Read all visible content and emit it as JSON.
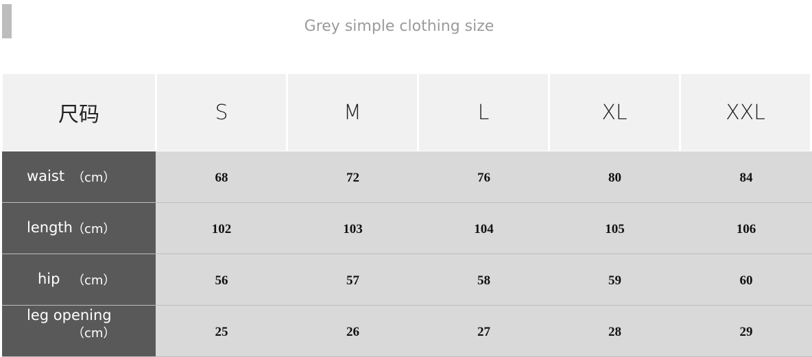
{
  "title": "Grey simple clothing size",
  "header": {
    "corner": "尺码",
    "sizes": [
      "S",
      "M",
      "L",
      "XL",
      "XXL"
    ]
  },
  "rows": [
    {
      "label": "waist",
      "unit": "（cm）",
      "values": [
        "68",
        "72",
        "76",
        "80",
        "84"
      ]
    },
    {
      "label": "length",
      "unit": "（cm）",
      "values": [
        "102",
        "103",
        "104",
        "105",
        "106"
      ]
    },
    {
      "label": "hip",
      "unit": "（cm）",
      "values": [
        "56",
        "57",
        "58",
        "59",
        "60"
      ]
    },
    {
      "label": "leg opening",
      "unit": "（cm）",
      "values": [
        "25",
        "26",
        "27",
        "28",
        "29"
      ]
    }
  ],
  "colors": {
    "header_bg": "#f1f1f1",
    "label_bg": "#595959",
    "cell_bg": "#d9d9d9",
    "title": "#9a9a9a"
  }
}
